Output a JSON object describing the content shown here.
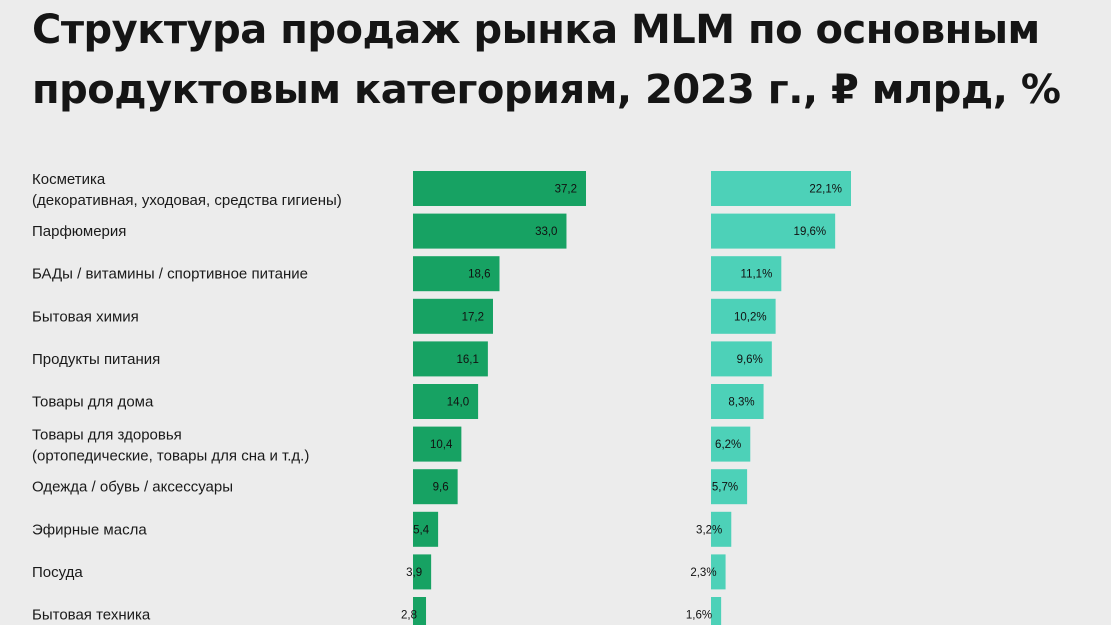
{
  "title_line1": "Структура продаж рынка MLM по основным",
  "title_line2": "продуктовым категориям, 2023 г., ₽ млрд, %",
  "colors": {
    "background": "#ececec",
    "values_bar": "#17a263",
    "share_bar": "#4dd1b8"
  },
  "chart_data": {
    "type": "bar",
    "orientation": "horizontal",
    "categories": [
      [
        "Косметика",
        "(декоративная, уходовая, средства гигиены)"
      ],
      [
        "Парфюмерия"
      ],
      [
        "БАДы / витамины / спортивное питание"
      ],
      [
        "Бытовая химия"
      ],
      [
        "Продукты питания"
      ],
      [
        "Товары для дома"
      ],
      [
        "Товары для здоровья",
        "(ортопедические, товары для сна и т.д.)"
      ],
      [
        "Одежда / обувь / аксессуары"
      ],
      [
        "Эфирные масла"
      ],
      [
        "Посуда"
      ],
      [
        "Бытовая техника"
      ]
    ],
    "series": [
      {
        "values": [
          37.2,
          33.0,
          18.6,
          17.2,
          16.1,
          14.0,
          10.4,
          9.6,
          5.4,
          3.9,
          2.8
        ],
        "labels": [
          "37,2",
          "33,0",
          "18,6",
          "17,2",
          "16,1",
          "14,0",
          "10,4",
          "9,6",
          "5,4",
          "3,9",
          "2,8"
        ]
      },
      {
        "values": [
          22.1,
          19.6,
          11.1,
          10.2,
          9.6,
          8.3,
          6.2,
          5.7,
          3.2,
          2.3,
          1.6
        ],
        "labels": [
          "22,1%",
          "19,6%",
          "11,1%",
          "10,2%",
          "9,6%",
          "8,3%",
          "6,2%",
          "5,7%",
          "3,2%",
          "2,3%",
          "1,6%"
        ]
      }
    ]
  }
}
